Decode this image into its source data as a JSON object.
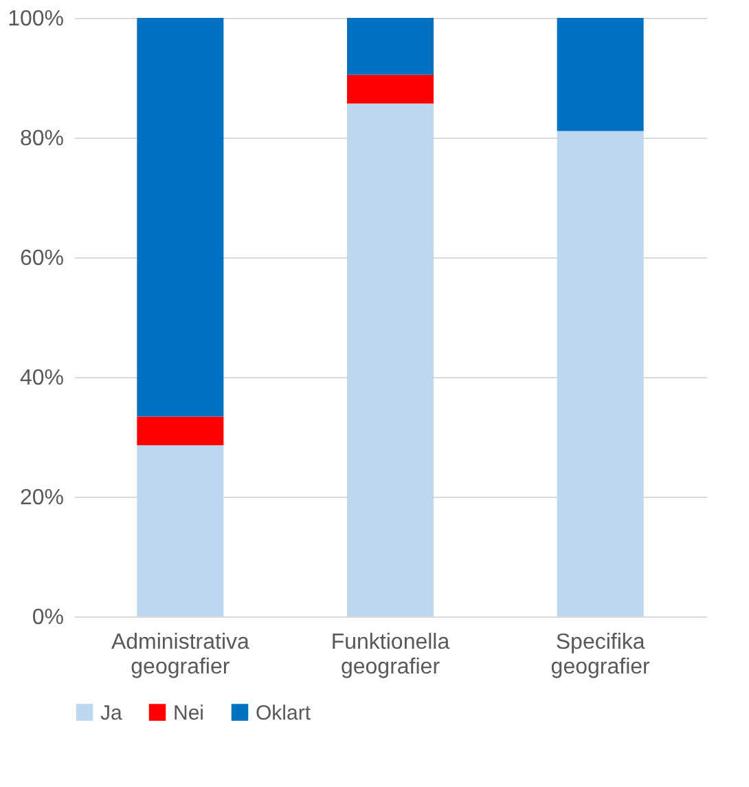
{
  "chart_data": {
    "type": "bar",
    "stacked": true,
    "categories": [
      "Administrativa geografier",
      "Funktionella geografier",
      "Specifika geografier"
    ],
    "series": [
      {
        "name": "Ja",
        "color": "#bdd7ee",
        "values": [
          28.6,
          85.7,
          81.1
        ]
      },
      {
        "name": "Nei",
        "color": "#ff0000",
        "values": [
          4.8,
          4.8,
          0
        ]
      },
      {
        "name": "Oklart",
        "color": "#0070c0",
        "values": [
          66.6,
          9.5,
          18.9
        ]
      }
    ],
    "ylim": [
      0,
      100
    ],
    "yticks": [
      {
        "value": 0,
        "label": "0%"
      },
      {
        "value": 20,
        "label": "20%"
      },
      {
        "value": 40,
        "label": "40%"
      },
      {
        "value": 60,
        "label": "60%"
      },
      {
        "value": 80,
        "label": "80%"
      },
      {
        "value": 100,
        "label": "100%"
      }
    ],
    "grid": "y",
    "legend": "bottom"
  }
}
